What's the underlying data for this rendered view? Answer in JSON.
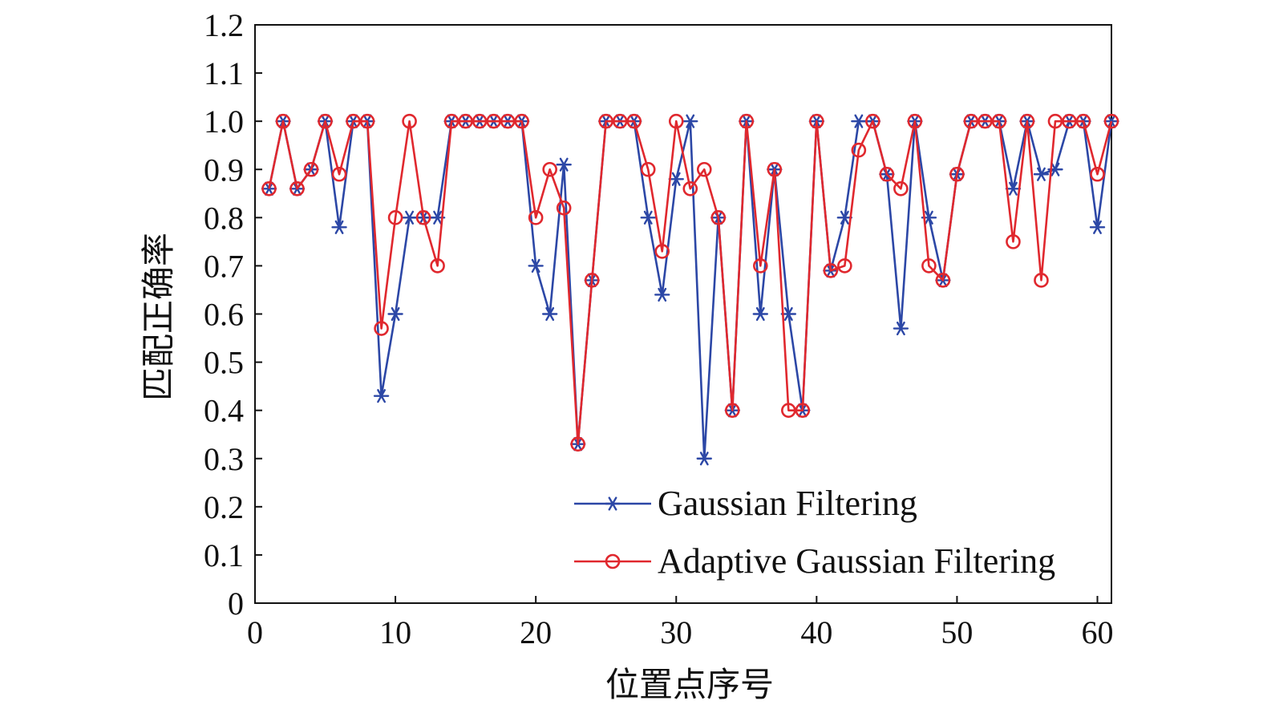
{
  "chart_data": {
    "type": "line",
    "title": "",
    "xlabel": "位置点序号",
    "ylabel": "匹配正确率",
    "xlim": [
      0,
      61
    ],
    "ylim": [
      0,
      1.2
    ],
    "xticks": [
      0,
      10,
      20,
      30,
      40,
      50,
      60
    ],
    "xtick_labels": [
      "0",
      "10",
      "20",
      "30",
      "40",
      "50",
      "60"
    ],
    "yticks": [
      0,
      0.1,
      0.2,
      0.3,
      0.4,
      0.5,
      0.6,
      0.7,
      0.8,
      0.9,
      1.0,
      1.1,
      1.2
    ],
    "ytick_labels": [
      "0",
      "0.1",
      "0.2",
      "0.3",
      "0.4",
      "0.5",
      "0.6",
      "0.7",
      "0.8",
      "0.9",
      "1.0",
      "1.1",
      "1.2"
    ],
    "grid": false,
    "legend_position": "bottom-right",
    "x": [
      1,
      2,
      3,
      4,
      5,
      6,
      7,
      8,
      9,
      10,
      11,
      12,
      13,
      14,
      15,
      16,
      17,
      18,
      19,
      20,
      21,
      22,
      23,
      24,
      25,
      26,
      27,
      28,
      29,
      30,
      31,
      32,
      33,
      34,
      35,
      36,
      37,
      38,
      39,
      40,
      41,
      42,
      43,
      44,
      45,
      46,
      47,
      48,
      49,
      50,
      51,
      52,
      53,
      54,
      55,
      56,
      57,
      58,
      59,
      60,
      61
    ],
    "series": [
      {
        "name": "Gaussian Filtering",
        "color": "#2c47a6",
        "marker": "asterisk",
        "values": [
          0.86,
          1.0,
          0.86,
          0.9,
          1.0,
          0.78,
          1.0,
          1.0,
          0.43,
          0.6,
          0.8,
          0.8,
          0.8,
          1.0,
          1.0,
          1.0,
          1.0,
          1.0,
          1.0,
          0.7,
          0.6,
          0.91,
          0.33,
          0.67,
          1.0,
          1.0,
          1.0,
          0.8,
          0.64,
          0.88,
          1.0,
          0.3,
          0.8,
          0.4,
          1.0,
          0.6,
          0.9,
          0.6,
          0.4,
          1.0,
          0.69,
          0.8,
          1.0,
          1.0,
          0.89,
          0.57,
          1.0,
          0.8,
          0.67,
          0.89,
          1.0,
          1.0,
          1.0,
          0.86,
          1.0,
          0.89,
          0.9,
          1.0,
          1.0,
          0.78,
          1.0
        ]
      },
      {
        "name": "Adaptive Gaussian Filtering",
        "color": "#e0282e",
        "marker": "circle",
        "values": [
          0.86,
          1.0,
          0.86,
          0.9,
          1.0,
          0.89,
          1.0,
          1.0,
          0.57,
          0.8,
          1.0,
          0.8,
          0.7,
          1.0,
          1.0,
          1.0,
          1.0,
          1.0,
          1.0,
          0.8,
          0.9,
          0.82,
          0.33,
          0.67,
          1.0,
          1.0,
          1.0,
          0.9,
          0.73,
          1.0,
          0.86,
          0.9,
          0.8,
          0.4,
          1.0,
          0.7,
          0.9,
          0.4,
          0.4,
          1.0,
          0.69,
          0.7,
          0.94,
          1.0,
          0.89,
          0.86,
          1.0,
          0.7,
          0.67,
          0.89,
          1.0,
          1.0,
          1.0,
          0.75,
          1.0,
          0.67,
          1.0,
          1.0,
          1.0,
          0.89,
          1.0
        ]
      }
    ]
  }
}
